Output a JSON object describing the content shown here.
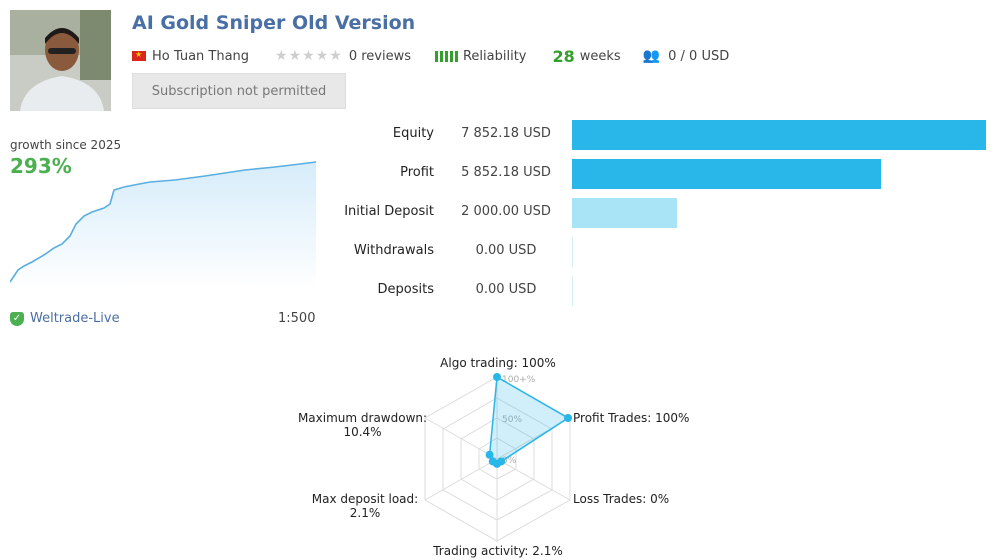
{
  "header": {
    "title": "AI Gold Sniper Old Version",
    "author": "Ho Tuan Thang",
    "reviews": "0 reviews",
    "reliability_label": "Reliability",
    "weeks_num": "28",
    "weeks_label": "weeks",
    "subscribers": "0 / 0 USD",
    "subscribe_button": "Subscription not permitted"
  },
  "growth": {
    "label": "growth since 2025",
    "value": "293%",
    "broker": "Weltrade-Live",
    "leverage": "1:500"
  },
  "stats": [
    {
      "label": "Equity",
      "value": "7 852.18 USD",
      "amount": 7852.18
    },
    {
      "label": "Profit",
      "value": "5 852.18 USD",
      "amount": 5852.18
    },
    {
      "label": "Initial Deposit",
      "value": "2 000.00 USD",
      "amount": 2000.0
    },
    {
      "label": "Withdrawals",
      "value": "0.00 USD",
      "amount": 0
    },
    {
      "label": "Deposits",
      "value": "0.00 USD",
      "amount": 0
    }
  ],
  "radar": {
    "axis_ticks": [
      "100+%",
      "50%",
      "0%"
    ],
    "algo": "Algo trading: 100%",
    "profit": "Profit Trades: 100%",
    "loss": "Loss Trades: 0%",
    "activity": "Trading activity: 2.1%",
    "load_label": "Max deposit load:",
    "load_value": "2.1%",
    "drawdown_label": "Maximum drawdown:",
    "drawdown_value": "10.4%",
    "values": {
      "algo": 100,
      "profit": 100,
      "loss": 0,
      "activity": 2.1,
      "load": 2.1,
      "drawdown": 10.4
    }
  },
  "colors": {
    "bar_primary": "#29b6e8",
    "bar_light": "#a9e3f6",
    "accent_green": "#4caf50",
    "title_blue": "#4a6fa5"
  }
}
